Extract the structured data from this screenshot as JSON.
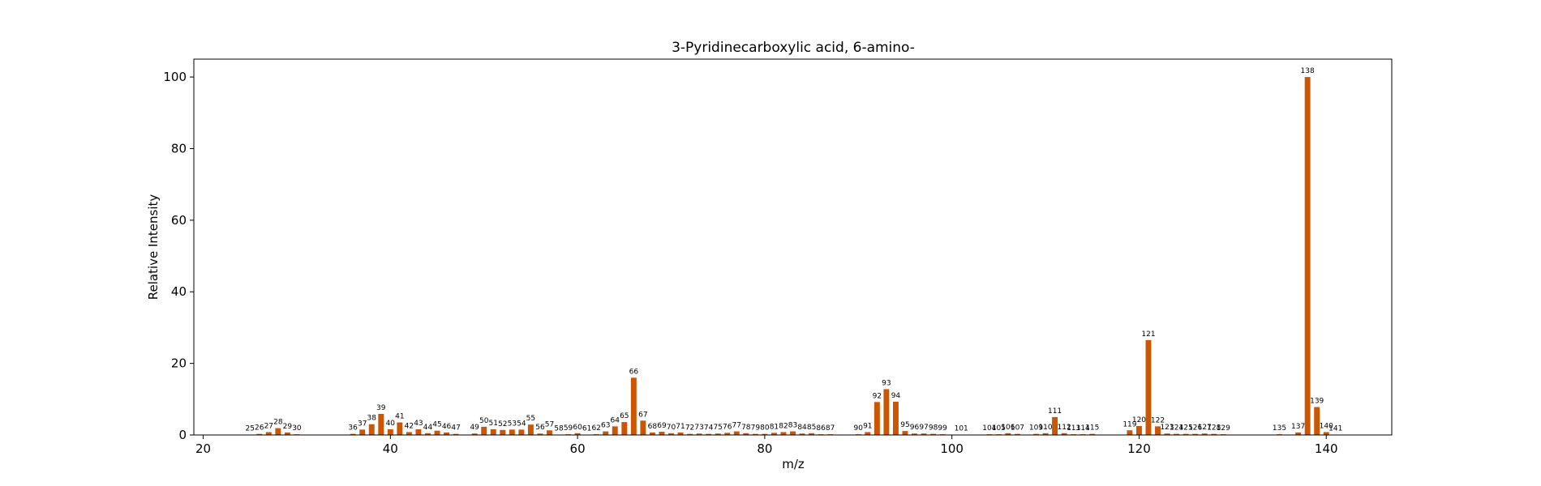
{
  "chart_data": {
    "type": "bar",
    "title": "3-Pyridinecarboxylic acid, 6-amino-",
    "xlabel": "m/z",
    "ylabel": "Relative Intensity",
    "xlim": [
      19,
      147
    ],
    "ylim": [
      0,
      105
    ],
    "xticks": [
      20,
      40,
      60,
      80,
      100,
      120,
      140
    ],
    "yticks": [
      0,
      20,
      40,
      60,
      80,
      100
    ],
    "grid": false,
    "bar_color": "#cc5500",
    "x": [
      25,
      26,
      27,
      28,
      29,
      30,
      36,
      37,
      38,
      39,
      40,
      41,
      42,
      43,
      44,
      45,
      46,
      47,
      49,
      50,
      51,
      52,
      53,
      54,
      55,
      56,
      57,
      58,
      59,
      60,
      61,
      62,
      63,
      64,
      65,
      66,
      67,
      68,
      69,
      70,
      71,
      72,
      73,
      74,
      75,
      76,
      77,
      78,
      79,
      80,
      81,
      82,
      83,
      84,
      85,
      86,
      87,
      90,
      91,
      92,
      93,
      94,
      95,
      96,
      97,
      98,
      99,
      101,
      104,
      105,
      106,
      107,
      109,
      110,
      111,
      112,
      113,
      114,
      115,
      119,
      120,
      121,
      122,
      123,
      124,
      125,
      126,
      127,
      128,
      129,
      135,
      137,
      138,
      139,
      140,
      141
    ],
    "values": [
      0.1,
      0.3,
      0.8,
      1.9,
      0.7,
      0.2,
      0.3,
      1.5,
      3.0,
      5.9,
      1.6,
      3.5,
      0.8,
      1.6,
      0.5,
      1.2,
      0.7,
      0.3,
      0.4,
      2.3,
      1.6,
      1.4,
      1.5,
      1.5,
      2.9,
      0.4,
      1.3,
      0.1,
      0.2,
      0.5,
      0.1,
      0.2,
      1.0,
      2.4,
      3.6,
      16.0,
      4.0,
      0.7,
      0.9,
      0.5,
      0.7,
      0.3,
      0.4,
      0.3,
      0.4,
      0.6,
      1.0,
      0.5,
      0.3,
      0.3,
      0.6,
      0.8,
      1.0,
      0.4,
      0.5,
      0.2,
      0.2,
      0.2,
      0.8,
      9.2,
      12.8,
      9.3,
      1.1,
      0.4,
      0.4,
      0.3,
      0.2,
      0.1,
      0.2,
      0.2,
      0.5,
      0.3,
      0.3,
      0.5,
      5.0,
      0.5,
      0.2,
      0.2,
      0.3,
      1.3,
      2.5,
      26.5,
      2.4,
      0.4,
      0.3,
      0.3,
      0.3,
      0.4,
      0.3,
      0.2,
      0.2,
      0.7,
      100.0,
      7.8,
      0.8,
      0.1
    ]
  }
}
